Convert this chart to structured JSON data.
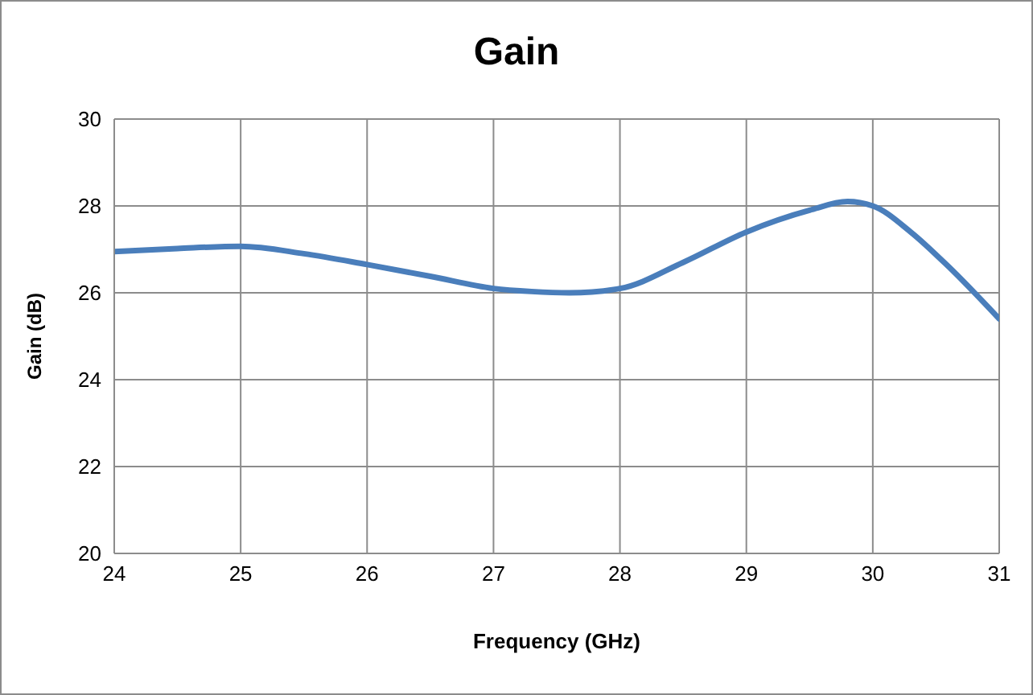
{
  "chart_data": {
    "type": "line",
    "title": "Gain",
    "xlabel": "Frequency (GHz)",
    "ylabel": "Gain (dB)",
    "x": [
      24,
      24.5,
      25,
      25.5,
      26,
      26.5,
      27,
      27.3,
      27.6,
      28,
      28.5,
      29,
      29.5,
      29.8,
      30,
      30.3,
      30.6,
      31
    ],
    "series": [
      {
        "color": "#4a7ebb",
        "values": [
          26.95,
          27.02,
          27.07,
          26.9,
          26.65,
          26.38,
          26.1,
          26.03,
          26.0,
          26.1,
          26.7,
          27.4,
          27.9,
          28.1,
          28.0,
          27.4,
          26.6,
          25.4
        ]
      }
    ],
    "xlim": [
      24,
      31
    ],
    "xticks": [
      24,
      25,
      26,
      27,
      28,
      29,
      30,
      31
    ],
    "ylim": [
      20,
      30
    ],
    "yticks": [
      20,
      22,
      24,
      26,
      28,
      30
    ],
    "grid": true,
    "legend": false,
    "marker": "none",
    "line_style": "solid"
  }
}
